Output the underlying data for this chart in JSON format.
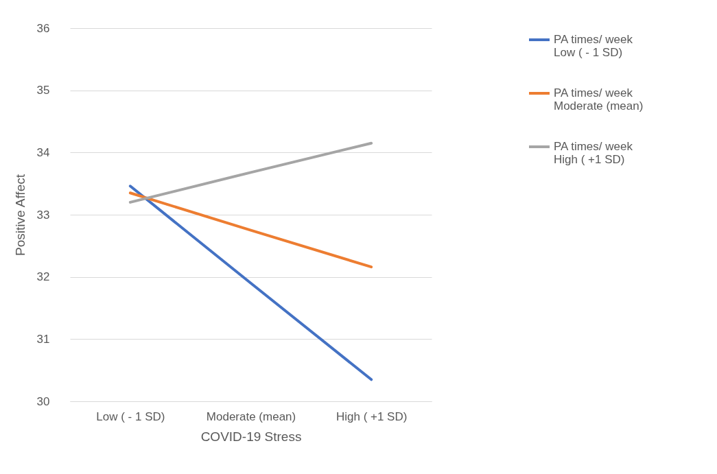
{
  "chart_data": {
    "type": "line",
    "xlabel": "COVID-19 Stress",
    "ylabel": "Positive Affect",
    "categories": [
      "Low ( - 1 SD)",
      "Moderate (mean)",
      "High ( +1 SD)"
    ],
    "series": [
      {
        "name": "PA times/ week Low ( - 1 SD)",
        "color": "#4472c4",
        "values": [
          33.46,
          31.9,
          30.35
        ]
      },
      {
        "name": "PA times/ week Moderate (mean)",
        "color": "#ed7d31",
        "values": [
          33.35,
          32.75,
          32.16
        ]
      },
      {
        "name": "PA times/ week High ( +1 SD)",
        "color": "#a5a5a5",
        "values": [
          33.2,
          33.68,
          34.15
        ]
      }
    ],
    "ylim": [
      30,
      36
    ],
    "yticks": [
      30,
      31,
      32,
      33,
      34,
      35,
      36
    ],
    "grid": "y",
    "legend": "right",
    "marker": "none",
    "line_style": "solid"
  }
}
